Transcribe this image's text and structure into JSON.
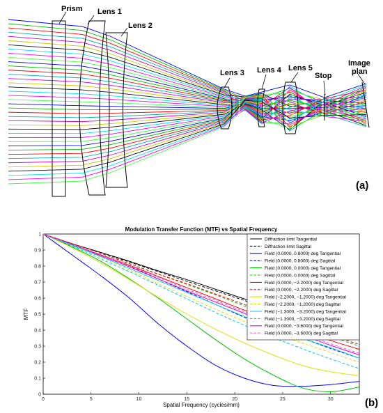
{
  "panel_a": {
    "tag": "(a)",
    "labels": {
      "prism": "Prism",
      "lens1": "Lens 1",
      "lens2": "Lens 2",
      "lens3": "Lens 3",
      "lens4": "Lens 4",
      "lens5": "Lens 5",
      "stop": "Stop",
      "image_line1": "Image",
      "image_line2": "plan"
    },
    "ray_colors": [
      "#0000ff",
      "#00c000",
      "#ff0000",
      "#00b0b0",
      "#d000d0",
      "#c8c800",
      "#101010",
      "#00e0ff",
      "#ff00ff",
      "#40ff40"
    ]
  },
  "panel_b": {
    "tag": "(b)"
  },
  "chart_data": {
    "type": "line",
    "title": "Modulation Transfer Function (MTF) vs Spatial Frequency",
    "xlabel": "Spatial Frequency (cycles/mm)",
    "ylabel": "MTF",
    "xlim": [
      0,
      33
    ],
    "ylim": [
      0,
      1
    ],
    "xticks": [
      "0",
      "5",
      "10",
      "15",
      "20",
      "25",
      "30"
    ],
    "yticks": [
      "0",
      "0.1",
      "0.2",
      "0.3",
      "0.4",
      "0.5",
      "0.6",
      "0.7",
      "0.8",
      "0.9",
      "1"
    ],
    "grid": false,
    "legend_position": "top-right",
    "x": [
      0,
      3,
      6,
      9,
      12,
      15,
      18,
      21,
      24,
      27,
      30,
      33
    ],
    "series": [
      {
        "name": "Diffraction limit Tangential",
        "color": "#000000",
        "dash": "solid",
        "values": [
          1.0,
          0.94,
          0.885,
          0.83,
          0.77,
          0.715,
          0.655,
          0.595,
          0.54,
          0.48,
          0.42,
          0.36
        ]
      },
      {
        "name": "Diffraction limit Sagittal",
        "color": "#000000",
        "dash": "dashed",
        "values": [
          1.0,
          0.94,
          0.885,
          0.825,
          0.765,
          0.705,
          0.645,
          0.585,
          0.525,
          0.465,
          0.41,
          0.35
        ]
      },
      {
        "name": "Field (0.0000, 0.8000) deg Tangential",
        "color": "#0000ff",
        "dash": "solid",
        "values": [
          1.0,
          0.87,
          0.74,
          0.6,
          0.44,
          0.3,
          0.18,
          0.1,
          0.055,
          0.05,
          0.06,
          0.08
        ]
      },
      {
        "name": "Field (0.0000, 0.8000) deg Sagittal",
        "color": "#0000ff",
        "dash": "dashed",
        "values": [
          1.0,
          0.935,
          0.87,
          0.8,
          0.72,
          0.64,
          0.56,
          0.48,
          0.41,
          0.35,
          0.285,
          0.225
        ]
      },
      {
        "name": "Field (0.0000, 0.0000) deg Tangential",
        "color": "#00c000",
        "dash": "solid",
        "values": [
          1.0,
          0.92,
          0.83,
          0.72,
          0.6,
          0.47,
          0.34,
          0.22,
          0.12,
          0.04,
          0.015,
          0.045
        ]
      },
      {
        "name": "Field (0.0000, 0.0000) deg Sagittal",
        "color": "#00c000",
        "dash": "dashed",
        "values": [
          1.0,
          0.94,
          0.88,
          0.815,
          0.75,
          0.685,
          0.62,
          0.55,
          0.48,
          0.42,
          0.36,
          0.3
        ]
      },
      {
        "name": "Field (0.0000, −2.2000) deg Tangential",
        "color": "#ff0000",
        "dash": "solid",
        "values": [
          1.0,
          0.935,
          0.87,
          0.805,
          0.735,
          0.665,
          0.595,
          0.525,
          0.46,
          0.395,
          0.335,
          0.28
        ]
      },
      {
        "name": "Field (0.0000, −2.2000) deg Sagittal",
        "color": "#ff0000",
        "dash": "dashed",
        "values": [
          1.0,
          0.94,
          0.88,
          0.815,
          0.75,
          0.69,
          0.625,
          0.56,
          0.495,
          0.435,
          0.37,
          0.31
        ]
      },
      {
        "name": "Field (−2.2000, −1.2000) deg Tangential",
        "color": "#e0e000",
        "dash": "solid",
        "values": [
          1.0,
          0.915,
          0.82,
          0.715,
          0.605,
          0.5,
          0.405,
          0.32,
          0.245,
          0.18,
          0.14,
          0.115
        ]
      },
      {
        "name": "Field (−2.2000, −1.2000) deg Sagittal",
        "color": "#e0e000",
        "dash": "dashed",
        "values": [
          1.0,
          0.93,
          0.855,
          0.775,
          0.69,
          0.61,
          0.53,
          0.455,
          0.385,
          0.32,
          0.26,
          0.2
        ]
      },
      {
        "name": "Field (−1.3000, −3.2000) deg Tangential",
        "color": "#00c8e8",
        "dash": "solid",
        "values": [
          1.0,
          0.93,
          0.86,
          0.785,
          0.71,
          0.635,
          0.56,
          0.485,
          0.415,
          0.35,
          0.29,
          0.225
        ]
      },
      {
        "name": "Field (−1.3000, −3.2000) deg Sagittal",
        "color": "#00c8e8",
        "dash": "dashed",
        "values": [
          1.0,
          0.925,
          0.845,
          0.765,
          0.68,
          0.595,
          0.51,
          0.43,
          0.355,
          0.285,
          0.22,
          0.16
        ]
      },
      {
        "name": "Field (0.0000, −3.6000) deg Tangential",
        "color": "#e000e0",
        "dash": "solid",
        "values": [
          1.0,
          0.935,
          0.865,
          0.795,
          0.72,
          0.645,
          0.575,
          0.505,
          0.435,
          0.37,
          0.305,
          0.245
        ]
      },
      {
        "name": "Field (0.0000, −3.6000) deg Sagittal",
        "color": "#ff60c0",
        "dash": "dashed",
        "values": [
          1.0,
          0.935,
          0.87,
          0.8,
          0.73,
          0.655,
          0.585,
          0.515,
          0.445,
          0.38,
          0.315,
          0.255
        ]
      }
    ]
  }
}
